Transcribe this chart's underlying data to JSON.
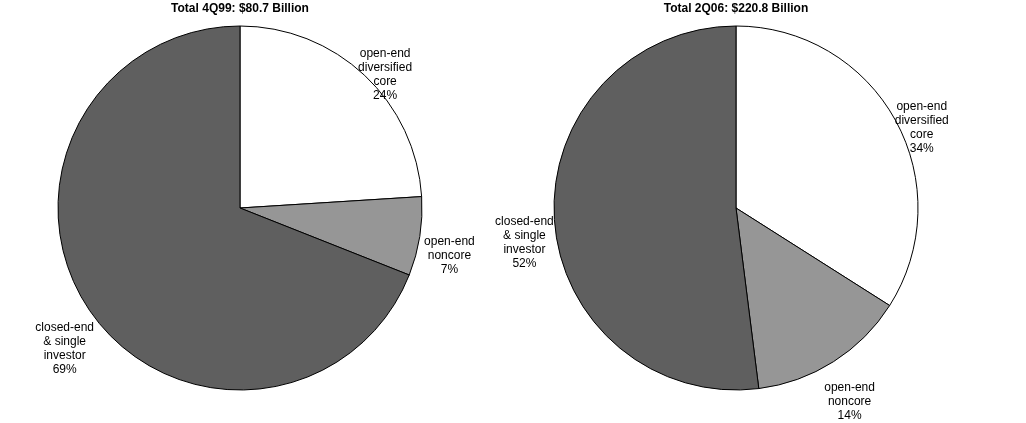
{
  "chart_data": [
    {
      "type": "pie",
      "title": "Total 4Q99: $80.7 Billion",
      "categories": [
        "open-end\ndiversified\ncore",
        "open-end\nnoncore",
        "closed-end\n& single\ninvestor"
      ],
      "values": [
        24,
        7,
        69
      ],
      "value_labels": [
        "24%",
        "7%",
        "69%"
      ],
      "colors": [
        "#ffffff",
        "#969696",
        "#5f5f5f"
      ],
      "legend": false
    },
    {
      "type": "pie",
      "title": "Total 2Q06: $220.8 Billion",
      "categories": [
        "open-end\ndiversified\ncore",
        "open-end\nnoncore",
        "closed-end\n& single\ninvestor"
      ],
      "values": [
        34,
        14,
        52
      ],
      "value_labels": [
        "34%",
        "14%",
        "52%"
      ],
      "colors": [
        "#ffffff",
        "#969696",
        "#5f5f5f"
      ],
      "legend": false
    }
  ]
}
